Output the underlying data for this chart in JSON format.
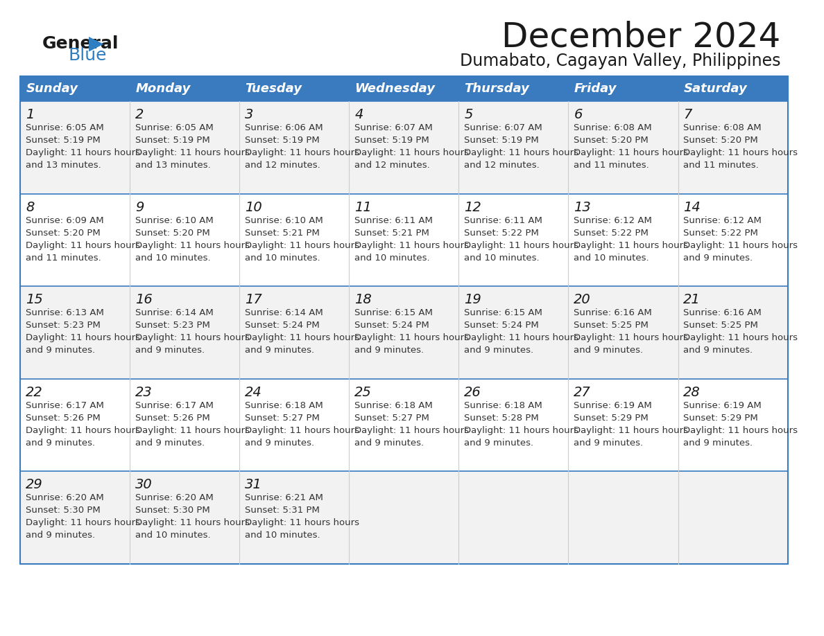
{
  "title": "December 2024",
  "subtitle": "Dumabato, Cagayan Valley, Philippines",
  "header_bg": "#3a7abf",
  "header_text": "#ffffff",
  "row_bg_odd": "#f2f2f2",
  "row_bg_even": "#ffffff",
  "border_color": "#3a7abf",
  "days_of_week": [
    "Sunday",
    "Monday",
    "Tuesday",
    "Wednesday",
    "Thursday",
    "Friday",
    "Saturday"
  ],
  "title_color": "#1a1a1a",
  "subtitle_color": "#1a1a1a",
  "day_num_color": "#1a1a1a",
  "cell_text_color": "#333333",
  "logo_general_color": "#1a1a1a",
  "logo_blue_color": "#2e7fc1",
  "calendar": [
    [
      {
        "day": 1,
        "sunrise": "6:05 AM",
        "sunset": "5:19 PM",
        "daylight": "11 hours and 13 minutes"
      },
      {
        "day": 2,
        "sunrise": "6:05 AM",
        "sunset": "5:19 PM",
        "daylight": "11 hours and 13 minutes"
      },
      {
        "day": 3,
        "sunrise": "6:06 AM",
        "sunset": "5:19 PM",
        "daylight": "11 hours and 12 minutes"
      },
      {
        "day": 4,
        "sunrise": "6:07 AM",
        "sunset": "5:19 PM",
        "daylight": "11 hours and 12 minutes"
      },
      {
        "day": 5,
        "sunrise": "6:07 AM",
        "sunset": "5:19 PM",
        "daylight": "11 hours and 12 minutes"
      },
      {
        "day": 6,
        "sunrise": "6:08 AM",
        "sunset": "5:20 PM",
        "daylight": "11 hours and 11 minutes"
      },
      {
        "day": 7,
        "sunrise": "6:08 AM",
        "sunset": "5:20 PM",
        "daylight": "11 hours and 11 minutes"
      }
    ],
    [
      {
        "day": 8,
        "sunrise": "6:09 AM",
        "sunset": "5:20 PM",
        "daylight": "11 hours and 11 minutes"
      },
      {
        "day": 9,
        "sunrise": "6:10 AM",
        "sunset": "5:20 PM",
        "daylight": "11 hours and 10 minutes"
      },
      {
        "day": 10,
        "sunrise": "6:10 AM",
        "sunset": "5:21 PM",
        "daylight": "11 hours and 10 minutes"
      },
      {
        "day": 11,
        "sunrise": "6:11 AM",
        "sunset": "5:21 PM",
        "daylight": "11 hours and 10 minutes"
      },
      {
        "day": 12,
        "sunrise": "6:11 AM",
        "sunset": "5:22 PM",
        "daylight": "11 hours and 10 minutes"
      },
      {
        "day": 13,
        "sunrise": "6:12 AM",
        "sunset": "5:22 PM",
        "daylight": "11 hours and 10 minutes"
      },
      {
        "day": 14,
        "sunrise": "6:12 AM",
        "sunset": "5:22 PM",
        "daylight": "11 hours and 9 minutes"
      }
    ],
    [
      {
        "day": 15,
        "sunrise": "6:13 AM",
        "sunset": "5:23 PM",
        "daylight": "11 hours and 9 minutes"
      },
      {
        "day": 16,
        "sunrise": "6:14 AM",
        "sunset": "5:23 PM",
        "daylight": "11 hours and 9 minutes"
      },
      {
        "day": 17,
        "sunrise": "6:14 AM",
        "sunset": "5:24 PM",
        "daylight": "11 hours and 9 minutes"
      },
      {
        "day": 18,
        "sunrise": "6:15 AM",
        "sunset": "5:24 PM",
        "daylight": "11 hours and 9 minutes"
      },
      {
        "day": 19,
        "sunrise": "6:15 AM",
        "sunset": "5:24 PM",
        "daylight": "11 hours and 9 minutes"
      },
      {
        "day": 20,
        "sunrise": "6:16 AM",
        "sunset": "5:25 PM",
        "daylight": "11 hours and 9 minutes"
      },
      {
        "day": 21,
        "sunrise": "6:16 AM",
        "sunset": "5:25 PM",
        "daylight": "11 hours and 9 minutes"
      }
    ],
    [
      {
        "day": 22,
        "sunrise": "6:17 AM",
        "sunset": "5:26 PM",
        "daylight": "11 hours and 9 minutes"
      },
      {
        "day": 23,
        "sunrise": "6:17 AM",
        "sunset": "5:26 PM",
        "daylight": "11 hours and 9 minutes"
      },
      {
        "day": 24,
        "sunrise": "6:18 AM",
        "sunset": "5:27 PM",
        "daylight": "11 hours and 9 minutes"
      },
      {
        "day": 25,
        "sunrise": "6:18 AM",
        "sunset": "5:27 PM",
        "daylight": "11 hours and 9 minutes"
      },
      {
        "day": 26,
        "sunrise": "6:18 AM",
        "sunset": "5:28 PM",
        "daylight": "11 hours and 9 minutes"
      },
      {
        "day": 27,
        "sunrise": "6:19 AM",
        "sunset": "5:29 PM",
        "daylight": "11 hours and 9 minutes"
      },
      {
        "day": 28,
        "sunrise": "6:19 AM",
        "sunset": "5:29 PM",
        "daylight": "11 hours and 9 minutes"
      }
    ],
    [
      {
        "day": 29,
        "sunrise": "6:20 AM",
        "sunset": "5:30 PM",
        "daylight": "11 hours and 9 minutes"
      },
      {
        "day": 30,
        "sunrise": "6:20 AM",
        "sunset": "5:30 PM",
        "daylight": "11 hours and 10 minutes"
      },
      {
        "day": 31,
        "sunrise": "6:21 AM",
        "sunset": "5:31 PM",
        "daylight": "11 hours and 10 minutes"
      },
      null,
      null,
      null,
      null
    ]
  ]
}
